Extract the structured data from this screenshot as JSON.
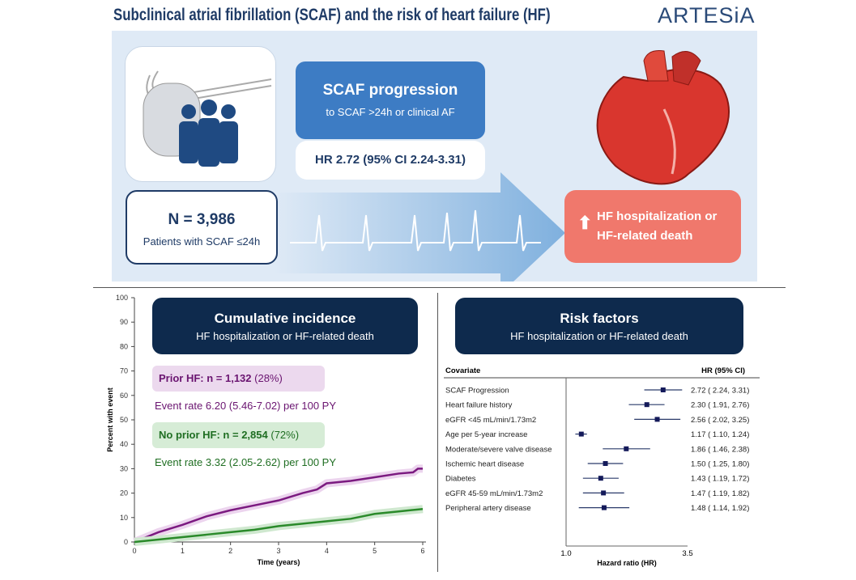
{
  "title": "Subclinical atrial fibrillation (SCAF) and the risk of heart failure (HF)",
  "logo": "ARTESiA",
  "cohort": {
    "n": "N = 3,986",
    "sub": "Patients with SCAF ≤24h"
  },
  "progression": {
    "title": "SCAF progression",
    "sub": "to SCAF >24h or clinical AF",
    "hr": "HR 2.72 (95% CI 2.24-3.31)"
  },
  "outcome": {
    "line1": "HF hospitalization or",
    "line2": "HF-related death",
    "icon": "arrow-up-icon"
  },
  "colors": {
    "navy": "#0e2a4d",
    "blue": "#3d7cc4",
    "salmon": "#f0786c",
    "purple": "#6a1470",
    "green": "#1f6e22",
    "panel": "#dfeaf6"
  },
  "cumulative": {
    "title": "Cumulative incidence",
    "sub": "HF hospitalization or HF-related death",
    "prior": {
      "label": "Prior HF: n = ",
      "n": "1,132",
      "pct": " (28%)",
      "rate": "Event rate 6.20 (5.46-7.02) per 100 PY"
    },
    "noprior": {
      "label": "No prior HF: n = ",
      "n": "2,854",
      "pct": " (72%)",
      "rate": "Event rate 3.32 (2.05-2.62) per 100 PY"
    }
  },
  "risk": {
    "title": "Risk factors",
    "sub": "HF hospitalization or HF-related death"
  },
  "chart_data": [
    {
      "type": "line",
      "xlabel": "Time (years)",
      "ylabel": "Percent with event",
      "xlim": [
        0,
        6
      ],
      "ylim": [
        0,
        100
      ],
      "xticks": [
        "0",
        "1",
        "2",
        "3",
        "4",
        "5",
        "6"
      ],
      "yticks": [
        "0",
        "10",
        "20",
        "30",
        "40",
        "50",
        "60",
        "70",
        "80",
        "90",
        "100"
      ],
      "series": [
        {
          "name": "Prior HF",
          "color": "#7b1a80",
          "x": [
            0,
            0.25,
            0.5,
            1,
            1.5,
            2,
            2.5,
            3,
            3.5,
            3.8,
            4,
            4.5,
            5,
            5.5,
            5.8,
            5.9,
            6
          ],
          "y": [
            0,
            2,
            4,
            7,
            10.5,
            13,
            15,
            17,
            20,
            21.5,
            24,
            25,
            26.5,
            28,
            28.5,
            30,
            30
          ]
        },
        {
          "name": "No prior HF",
          "color": "#2a8a2a",
          "x": [
            0,
            0.5,
            1,
            1.5,
            2,
            2.5,
            3,
            3.5,
            4,
            4.5,
            5,
            5.5,
            6
          ],
          "y": [
            0,
            1,
            2,
            3,
            4,
            5,
            6.5,
            7.5,
            8.5,
            9.5,
            11.5,
            12.5,
            13.5
          ]
        }
      ]
    },
    {
      "type": "forest",
      "xlabel": "Hazard ratio (HR)",
      "xscale": "log",
      "xlim": [
        1.0,
        3.5
      ],
      "xticks": [
        "1.0",
        "3.5"
      ],
      "col_covariate": "Covariate",
      "col_hr": "HR (95% CI)",
      "rows": [
        {
          "label": "SCAF Progression",
          "hr": 2.72,
          "lo": 2.24,
          "hi": 3.31,
          "text": "2.72 ( 2.24,  3.31)"
        },
        {
          "label": "Heart failure history",
          "hr": 2.3,
          "lo": 1.91,
          "hi": 2.76,
          "text": "2.30 ( 1.91,  2.76)"
        },
        {
          "label": "eGFR <45 mL/min/1.73m2",
          "hr": 2.56,
          "lo": 2.02,
          "hi": 3.25,
          "text": "2.56 ( 2.02,  3.25)"
        },
        {
          "label": "Age per 5-year increase",
          "hr": 1.17,
          "lo": 1.1,
          "hi": 1.24,
          "text": "1.17 ( 1.10,  1.24)"
        },
        {
          "label": "Moderate/severe valve disease",
          "hr": 1.86,
          "lo": 1.46,
          "hi": 2.38,
          "text": "1.86 ( 1.46,  2.38)"
        },
        {
          "label": "Ischemic heart disease",
          "hr": 1.5,
          "lo": 1.25,
          "hi": 1.8,
          "text": "1.50 ( 1.25,  1.80)"
        },
        {
          "label": "Diabetes",
          "hr": 1.43,
          "lo": 1.19,
          "hi": 1.72,
          "text": "1.43 ( 1.19,  1.72)"
        },
        {
          "label": "eGFR 45-59 mL/min/1.73m2",
          "hr": 1.47,
          "lo": 1.19,
          "hi": 1.82,
          "text": "1.47 ( 1.19,  1.82)"
        },
        {
          "label": "Peripheral artery disease",
          "hr": 1.48,
          "lo": 1.14,
          "hi": 1.92,
          "text": "1.48 ( 1.14,  1.92)"
        }
      ]
    }
  ]
}
